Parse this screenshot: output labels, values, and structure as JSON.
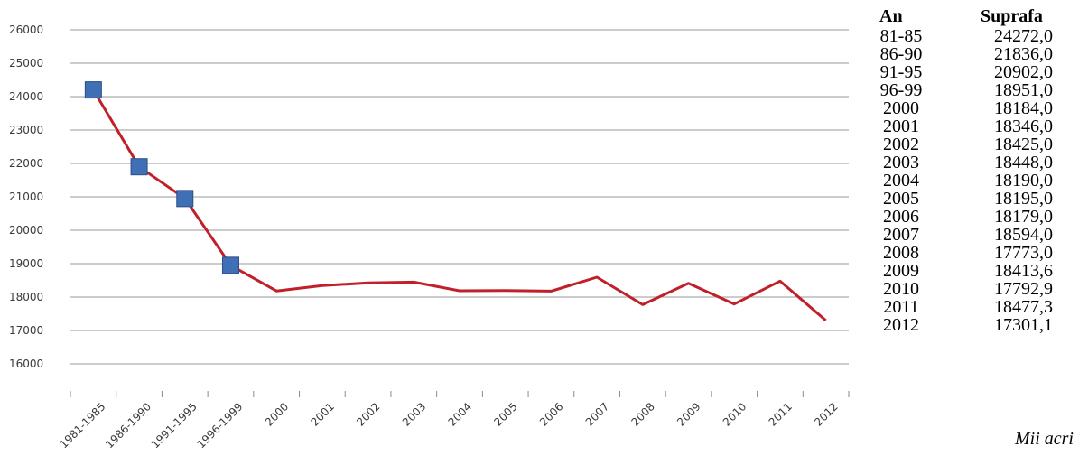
{
  "chart_data": {
    "type": "line",
    "categories": [
      "1981-1985",
      "1986-1990",
      "1991-1995",
      "1996-1999",
      "2000",
      "2001",
      "2002",
      "2003",
      "2004",
      "2005",
      "2006",
      "2007",
      "2008",
      "2009",
      "2010",
      "2011",
      "2012"
    ],
    "values": [
      24200,
      21900,
      20950,
      18950,
      18184,
      18346,
      18425,
      18448,
      18190,
      18195,
      18179,
      18594,
      17773,
      18413.6,
      17792.9,
      18477.3,
      17301.1
    ],
    "ylim": [
      16000,
      26000
    ],
    "yticks": [
      16000,
      17000,
      18000,
      19000,
      20000,
      21000,
      22000,
      23000,
      24000,
      25000,
      26000
    ],
    "grid": true,
    "line_color": "#c0202a",
    "marker_color": "#3f6fb4",
    "marker_points": 4
  },
  "table": {
    "header": {
      "year": "An",
      "area": "Suprafa"
    },
    "rows": [
      {
        "year": "81-85",
        "area": "24272,0"
      },
      {
        "year": "86-90",
        "area": "21836,0"
      },
      {
        "year": "91-95",
        "area": "20902,0"
      },
      {
        "year": "96-99",
        "area": "18951,0"
      },
      {
        "year": "2000",
        "area": "18184,0"
      },
      {
        "year": "2001",
        "area": "18346,0"
      },
      {
        "year": "2002",
        "area": "18425,0"
      },
      {
        "year": "2003",
        "area": "18448,0"
      },
      {
        "year": "2004",
        "area": "18190,0"
      },
      {
        "year": "2005",
        "area": "18195,0"
      },
      {
        "year": "2006",
        "area": "18179,0"
      },
      {
        "year": "2007",
        "area": "18594,0"
      },
      {
        "year": "2008",
        "area": "17773,0"
      },
      {
        "year": "2009",
        "area": "18413,6"
      },
      {
        "year": "2010",
        "area": "17792,9"
      },
      {
        "year": "2011",
        "area": "18477,3"
      },
      {
        "year": "2012",
        "area": "17301,1"
      }
    ],
    "unit": "Mii acri"
  }
}
